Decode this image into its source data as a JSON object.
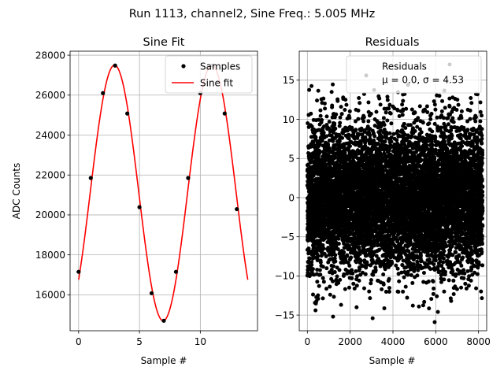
{
  "figure": {
    "suptitle": "Run 1113, channel2, Sine Freq.: 5.005 MHz"
  },
  "chart_data": [
    {
      "type": "scatter",
      "title": "Sine Fit",
      "xlabel": "Sample #",
      "ylabel": "ADC Counts",
      "xlim": [
        -0.7,
        14.7
      ],
      "ylim": [
        14200,
        28200
      ],
      "xticks": [
        0,
        5,
        10
      ],
      "yticks": [
        16000,
        18000,
        20000,
        22000,
        24000,
        26000,
        28000
      ],
      "grid": true,
      "legend": {
        "placement": "upper-right",
        "entries": [
          "Samples",
          "Sine fit"
        ]
      },
      "series": [
        {
          "name": "Samples",
          "kind": "points",
          "color": "#000000",
          "x": [
            0,
            1,
            2,
            3,
            4,
            5,
            6,
            7,
            8,
            9,
            10,
            11,
            12,
            13
          ],
          "y": [
            17150,
            21850,
            26100,
            27480,
            25080,
            20390,
            16080,
            14700,
            17150,
            21850,
            26100,
            27480,
            25080,
            20290
          ]
        },
        {
          "name": "Sine fit",
          "kind": "line",
          "color": "#ff0000",
          "model": {
            "offset": 21100,
            "amplitude": 6400,
            "period": 8.0,
            "peak_at": 2.95
          },
          "x_range": [
            0,
            13.9
          ]
        }
      ]
    },
    {
      "type": "scatter",
      "title": "Residuals",
      "xlabel": "Sample #",
      "ylabel": "",
      "xlim": [
        -380,
        8380
      ],
      "ylim": [
        -17.0,
        18.7
      ],
      "xticks": [
        0,
        2000,
        4000,
        6000,
        8000
      ],
      "yticks": [
        -15,
        -10,
        -5,
        0,
        5,
        10,
        15
      ],
      "grid": true,
      "legend": {
        "placement": "upper-right",
        "entries": [
          "Residuals",
          "μ = 0.0, σ = 4.53"
        ]
      },
      "series": [
        {
          "name": "Residuals",
          "kind": "points",
          "color": "#000000",
          "distribution": {
            "count": 8192,
            "x_range": [
              0,
              8191
            ],
            "mean": 0.0,
            "sigma": 4.53
          },
          "x": [
            2750,
            6650,
            1200,
            3050,
            5950,
            450,
            7950,
            2300,
            4700,
            6100
          ],
          "y": [
            15.6,
            17.0,
            -15.2,
            -15.4,
            -15.9,
            12.4,
            13.2,
            -14.0,
            14.4,
            -14.6
          ]
        }
      ]
    }
  ]
}
